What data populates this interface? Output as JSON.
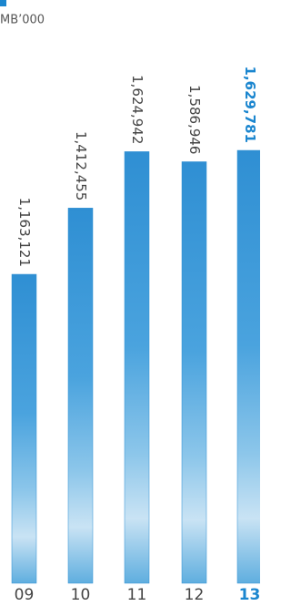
{
  "chart_data": {
    "type": "bar",
    "subtitle": "MB’000",
    "categories": [
      "09",
      "10",
      "11",
      "12",
      "13"
    ],
    "values": [
      1163121,
      1412455,
      1624942,
      1586946,
      1629781
    ],
    "value_labels": [
      "1,163,121",
      "1,412,455",
      "1,624,942",
      "1,586,946",
      "1,629,781"
    ],
    "color": "#2f8fd3",
    "highlight_index": 4,
    "highlight_color": "#1b86cf"
  }
}
